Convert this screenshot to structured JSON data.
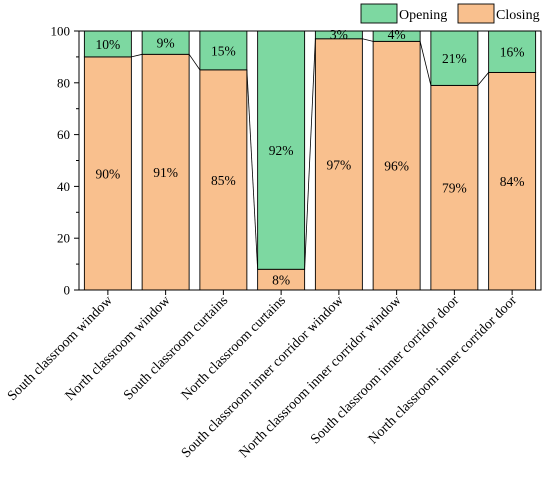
{
  "chart_data": {
    "type": "bar",
    "stacked": true,
    "percent": true,
    "categories": [
      "South classroom window",
      "North classroom window",
      "South classroom curtains",
      "North classroom curtains",
      "South classroom inner corridor window",
      "North classroom inner corridor window",
      "South classroom inner corridor door",
      "North classroom inner corridor door"
    ],
    "series": [
      {
        "name": "Closing",
        "values": [
          90,
          91,
          85,
          8,
          97,
          96,
          79,
          84
        ],
        "labels": [
          "90%",
          "91%",
          "85%",
          "8%",
          "97%",
          "96%",
          "79%",
          "84%"
        ],
        "color": "#f9c08e"
      },
      {
        "name": "Opening",
        "values": [
          10,
          9,
          15,
          92,
          3,
          4,
          21,
          16
        ],
        "labels": [
          "10%",
          "9%",
          "15%",
          "92%",
          "3%",
          "4%",
          "21%",
          "16%"
        ],
        "color": "#7dd8a1"
      }
    ],
    "legend_order": [
      "Opening",
      "Closing"
    ],
    "ylim": [
      0,
      100
    ],
    "yticks": [
      "0",
      "20",
      "40",
      "60",
      "80",
      "100"
    ],
    "legend_position": "top-right",
    "grid": false,
    "connector_lines": true
  }
}
